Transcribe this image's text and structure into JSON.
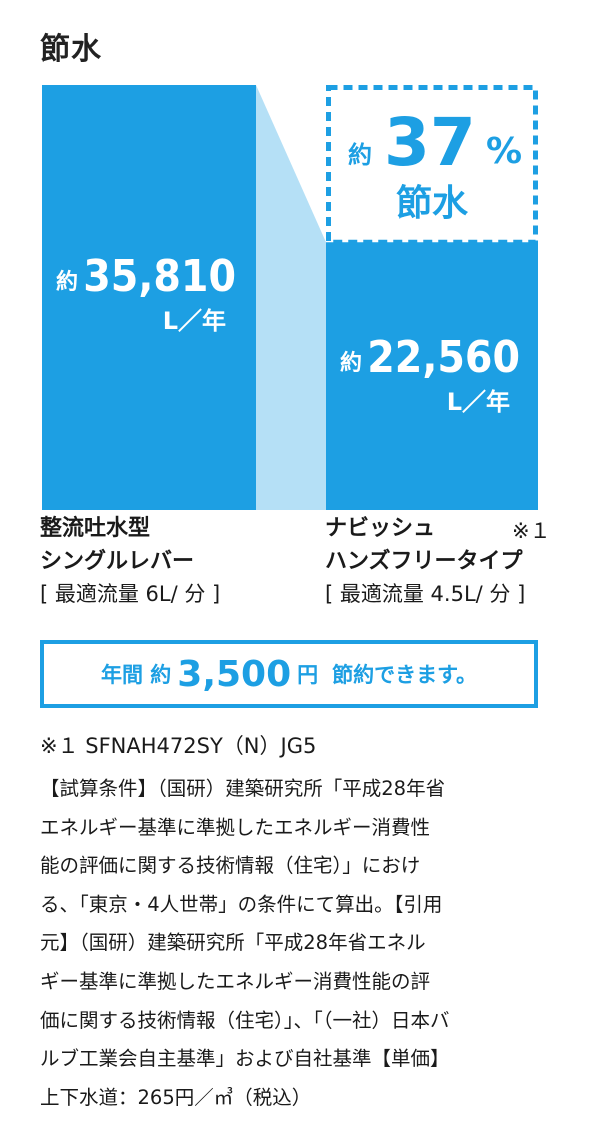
{
  "title": "節水",
  "chart_data": {
    "type": "bar",
    "categories": [
      "整流吐水型 シングルレバー",
      "ナビッシュ ハンズフリータイプ"
    ],
    "values": [
      35810,
      22560
    ],
    "unit": "L／年",
    "value_prefix": "約",
    "value_labels": [
      "35,810",
      "22,560"
    ],
    "colors": {
      "bar": "#1d9fe3",
      "connector": "#b5e0f6",
      "text": "#ffffff"
    },
    "savings_callout": {
      "prefix": "約",
      "number": "37",
      "percent": "%",
      "label": "節水"
    }
  },
  "labels": {
    "left": {
      "line1": "整流吐水型",
      "line2": "シングルレバー",
      "line3": "[ 最適流量 6L/ 分 ]"
    },
    "right": {
      "line1": "ナビッシュ",
      "line2": "ハンズフリータイプ",
      "line3": "[ 最適流量 4.5L/ 分 ]",
      "footnote": "※１"
    }
  },
  "savings_box": {
    "pre": "年間 約",
    "amount": "3,500",
    "yen": "円",
    "post": "節約できます。"
  },
  "note1": "※１ SFNAH472SY（N）JG5",
  "conditions": [
    "【試算条件】（国研）建築研究所「平成28年省",
    "エネルギー基準に準拠したエネルギー消費性",
    "能の評価に関する技術情報（住宅）」におけ",
    "る、「東京・4人世帯」の条件にて算出。【引用",
    "元】（国研）建築研究所「平成28年省エネル",
    "ギー基準に準拠したエネルギー消費性能の評",
    "価に関する技術情報（住宅）」、「（一社）日本バ",
    "ルブ工業会自主基準」および自社基準【単価】",
    "上下水道：265円／㎥（税込）"
  ]
}
